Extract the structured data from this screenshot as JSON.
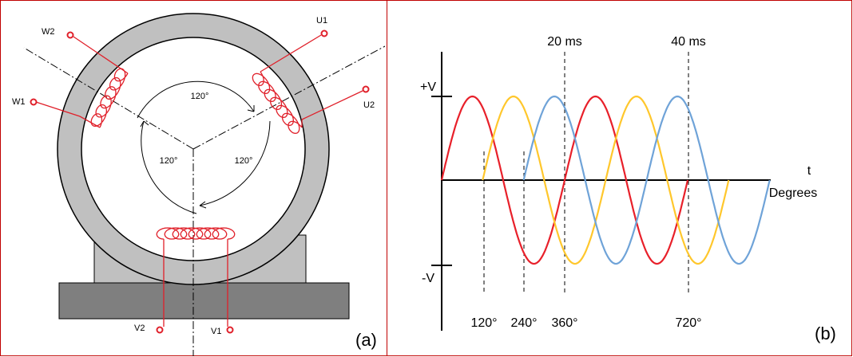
{
  "panel_a": {
    "terminals": {
      "w2": "W2",
      "w1": "W1",
      "u1": "U1",
      "u2": "U2",
      "v2": "V2",
      "v1": "V1"
    },
    "angles": [
      "120°",
      "120°",
      "120°"
    ],
    "label": "(a)"
  },
  "panel_b": {
    "plus_v": "+V",
    "minus_v": "-V",
    "t_axis": "t",
    "degrees": "Degrees",
    "times": [
      "20 ms",
      "40 ms"
    ],
    "degree_marks": [
      "120°",
      "240°",
      "360°",
      "720°"
    ],
    "label": "(b)"
  }
}
